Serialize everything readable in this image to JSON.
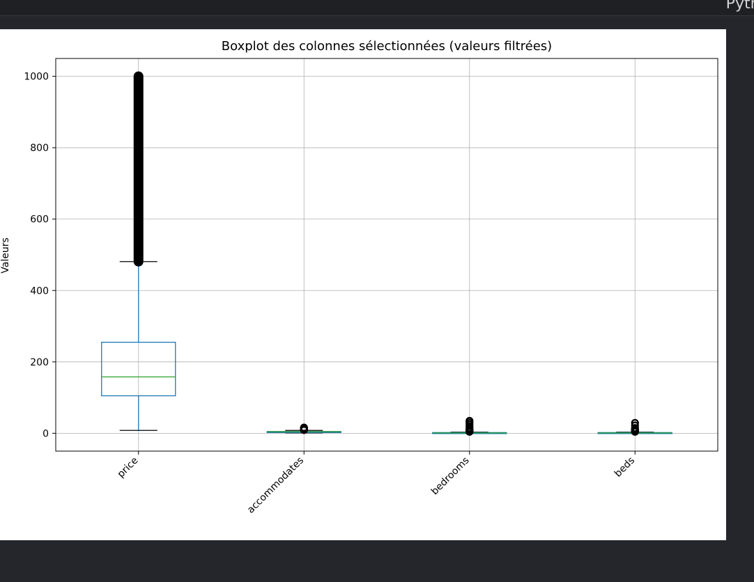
{
  "header": {
    "label": "Pytho"
  },
  "colors": {
    "box": "#1f77b4",
    "median": "#2ca02c",
    "grid": "#b0b0b0",
    "flier": "#000000"
  },
  "chart_data": {
    "type": "boxplot",
    "title": "Boxplot des colonnes sélectionnées (valeurs filtrées)",
    "xlabel": "",
    "ylabel": "Valeurs",
    "ylim": [
      -50,
      1050
    ],
    "yticks": [
      0,
      200,
      400,
      600,
      800,
      1000
    ],
    "grid": true,
    "categories": [
      "price",
      "accommodates",
      "bedrooms",
      "beds"
    ],
    "series": [
      {
        "category": "price",
        "whisker_low": 8,
        "q1": 105,
        "median": 158,
        "q3": 255,
        "whisker_high": 481,
        "outliers_range": [
          481,
          1000
        ]
      },
      {
        "category": "accommodates",
        "whisker_low": 1,
        "q1": 2,
        "median": 4,
        "q3": 5,
        "whisker_high": 8,
        "outliers": [
          9,
          10,
          11,
          12,
          13,
          14,
          15,
          16
        ]
      },
      {
        "category": "bedrooms",
        "whisker_low": 0,
        "q1": 1,
        "median": 1,
        "q3": 2,
        "whisker_high": 3,
        "outliers": [
          4,
          5,
          6,
          7,
          8,
          10,
          12,
          15,
          20,
          25,
          30,
          35
        ]
      },
      {
        "category": "beds",
        "whisker_low": 0,
        "q1": 1,
        "median": 1,
        "q3": 2,
        "whisker_high": 3,
        "outliers": [
          4,
          5,
          6,
          7,
          8,
          10,
          12,
          15,
          22,
          29
        ]
      }
    ]
  }
}
